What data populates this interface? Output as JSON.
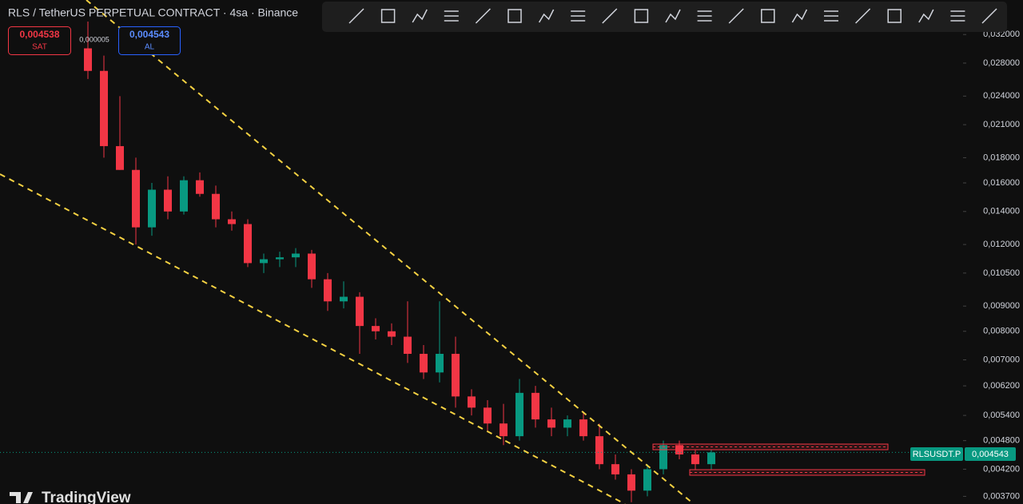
{
  "ui": {
    "title": "RLS / TetherUS PERPETUAL CONTRACT · 4sa · Binance",
    "sell_price": "0,004538",
    "sell_label": "SAT",
    "spread": "0,000005",
    "buy_price": "0,004543",
    "buy_label": "AL",
    "symbol_tag": "RLSUSDT.P",
    "last_price": "0,004543",
    "brand": "TradingView"
  },
  "chart_data": {
    "type": "candlestick",
    "log_scale": true,
    "up_color": "#089981",
    "down_color": "#f23645",
    "categories": [
      null,
      null,
      null,
      null,
      null,
      null,
      null,
      null,
      null,
      null,
      null,
      null,
      null,
      null,
      null,
      null,
      null,
      null,
      null,
      null,
      null,
      null,
      null,
      null,
      null,
      null,
      null,
      null,
      null,
      null,
      null,
      null,
      null,
      null,
      null,
      null,
      null,
      null,
      null,
      null
    ],
    "open": [
      0.03,
      0.027,
      0.019,
      0.017,
      0.013,
      0.0155,
      0.014,
      0.0162,
      0.0152,
      0.0135,
      0.0132,
      0.011,
      0.0112,
      0.0113,
      0.0115,
      0.0102,
      0.0092,
      0.0094,
      0.0082,
      0.008,
      0.0078,
      0.0072,
      0.0066,
      0.0072,
      0.0059,
      0.0056,
      0.0052,
      0.0049,
      0.006,
      0.0053,
      0.0051,
      0.0053,
      0.0049,
      0.0043,
      0.0041,
      0.0038,
      0.0042,
      0.0047,
      0.0045,
      0.0043
    ],
    "high": [
      0.034,
      0.029,
      0.024,
      0.018,
      0.016,
      0.0165,
      0.0165,
      0.0168,
      0.0158,
      0.014,
      0.0135,
      0.0115,
      0.0116,
      0.0118,
      0.0117,
      0.0105,
      0.0101,
      0.0096,
      0.0085,
      0.0083,
      0.0092,
      0.0075,
      0.0092,
      0.0078,
      0.0061,
      0.0058,
      0.0057,
      0.0064,
      0.0062,
      0.0056,
      0.0054,
      0.0055,
      0.0052,
      0.0045,
      0.0042,
      0.0043,
      0.0048,
      0.0048,
      0.0046,
      0.0046
    ],
    "low": [
      0.026,
      0.018,
      0.017,
      0.012,
      0.0125,
      0.0135,
      0.0138,
      0.015,
      0.013,
      0.0128,
      0.0108,
      0.0105,
      0.0108,
      0.0108,
      0.0098,
      0.0088,
      0.0089,
      0.0072,
      0.0077,
      0.0075,
      0.0069,
      0.0064,
      0.0063,
      0.0056,
      0.0054,
      0.005,
      0.0047,
      0.0048,
      0.0051,
      0.0049,
      0.0049,
      0.0048,
      0.0042,
      0.004,
      0.0036,
      0.0037,
      0.0041,
      0.0044,
      0.0042,
      0.0042
    ],
    "close": [
      0.027,
      0.019,
      0.017,
      0.013,
      0.0155,
      0.014,
      0.0162,
      0.0152,
      0.0135,
      0.0132,
      0.011,
      0.0112,
      0.0113,
      0.0115,
      0.0102,
      0.0092,
      0.0094,
      0.0082,
      0.008,
      0.0078,
      0.0072,
      0.0066,
      0.0072,
      0.0059,
      0.0056,
      0.0052,
      0.0049,
      0.006,
      0.0053,
      0.0051,
      0.0053,
      0.0049,
      0.0043,
      0.0041,
      0.0038,
      0.0042,
      0.0047,
      0.0045,
      0.0043,
      0.004543
    ],
    "ylim": [
      0.00357,
      0.0376
    ],
    "yticks": [
      {
        "value": 0.032,
        "label": "0,032000"
      },
      {
        "value": 0.028,
        "label": "0,028000"
      },
      {
        "value": 0.024,
        "label": "0,024000"
      },
      {
        "value": 0.021,
        "label": "0,021000"
      },
      {
        "value": 0.018,
        "label": "0,018000"
      },
      {
        "value": 0.016,
        "label": "0,016000"
      },
      {
        "value": 0.014,
        "label": "0,014000"
      },
      {
        "value": 0.012,
        "label": "0,012000"
      },
      {
        "value": 0.0105,
        "label": "0,010500"
      },
      {
        "value": 0.009,
        "label": "0,009000"
      },
      {
        "value": 0.008,
        "label": "0,008000"
      },
      {
        "value": 0.007,
        "label": "0,007000"
      },
      {
        "value": 0.0062,
        "label": "0,006200"
      },
      {
        "value": 0.0054,
        "label": "0,005400"
      },
      {
        "value": 0.0048,
        "label": "0,004800"
      },
      {
        "value": 0.0042,
        "label": "0,004200"
      },
      {
        "value": 0.0037,
        "label": "0,003700"
      }
    ]
  }
}
